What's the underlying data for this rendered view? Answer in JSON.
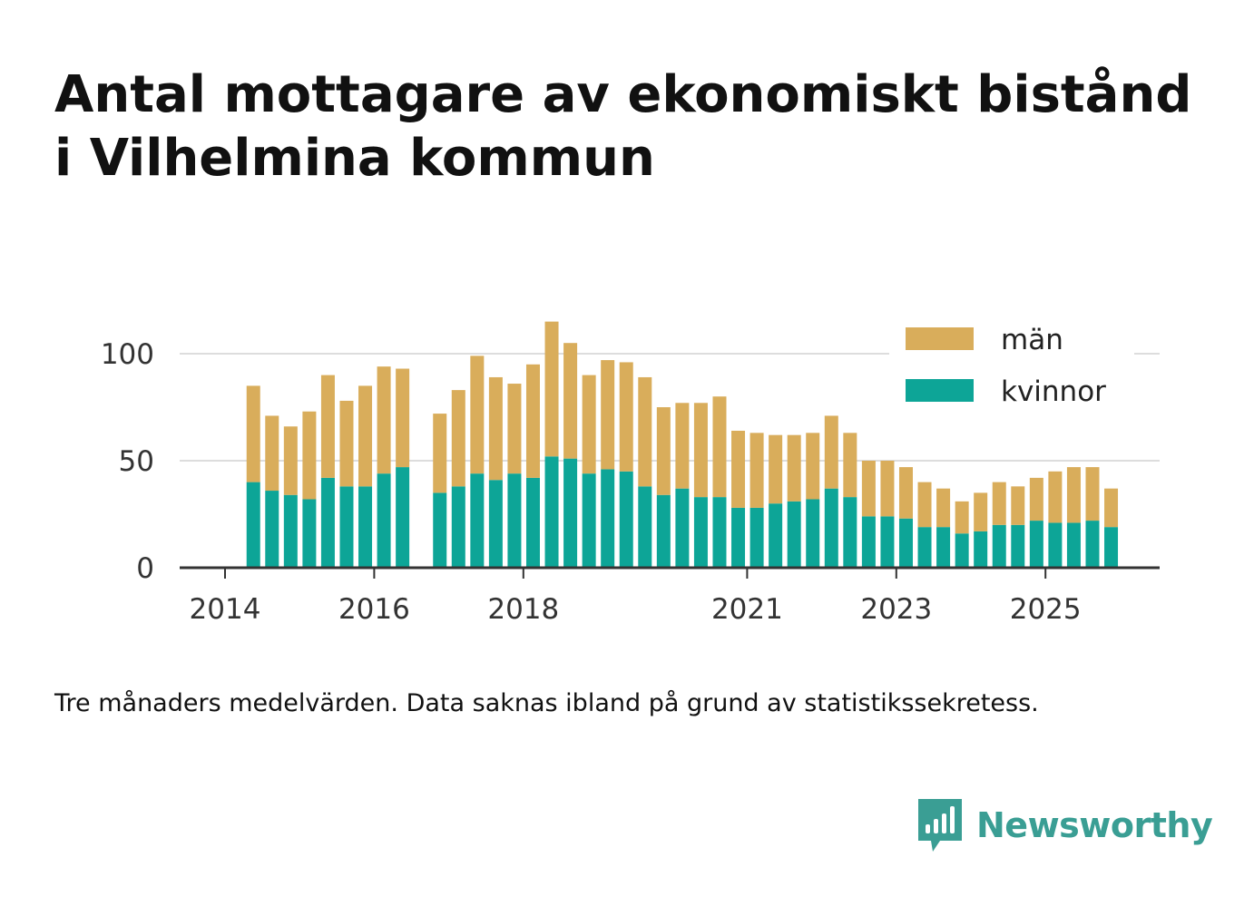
{
  "title": {
    "line1": "Antal mottagare av ekonomiskt bistånd",
    "line2": "i Vilhelmina kommun"
  },
  "note": "Tre månaders medelvärden. Data saknas ibland på grund av statistikssekretess.",
  "brand": {
    "name": "Newsworthy",
    "color": "#3a9e94"
  },
  "colors": {
    "man": "#d9ad5b",
    "kvinnor": "#0da597",
    "grid": "#dddddd",
    "axis": "#333333"
  },
  "chart_data": {
    "type": "bar",
    "stacked": true,
    "title": "Antal mottagare av ekonomiskt bistånd i Vilhelmina kommun",
    "xlabel": "",
    "ylabel": "",
    "ylim": [
      0,
      120
    ],
    "yticks": [
      0,
      50,
      100
    ],
    "xlim": [
      2014.0,
      2027.0
    ],
    "xticks": [
      2014,
      2016,
      2018,
      2021,
      2023,
      2025
    ],
    "legend": {
      "placement": "top-right",
      "entries": [
        "män",
        "kvinnor"
      ]
    },
    "x": [
      2014.38,
      2014.63,
      2014.88,
      2015.13,
      2015.38,
      2015.63,
      2015.88,
      2016.13,
      2016.38,
      2016.88,
      2017.13,
      2017.38,
      2017.63,
      2017.88,
      2018.13,
      2018.38,
      2018.63,
      2018.88,
      2019.13,
      2019.38,
      2019.63,
      2019.88,
      2020.13,
      2020.38,
      2020.63,
      2020.88,
      2021.13,
      2021.38,
      2021.63,
      2021.88,
      2022.13,
      2022.38,
      2022.63,
      2022.88,
      2023.13,
      2023.38,
      2023.63,
      2023.88,
      2024.13,
      2024.38,
      2024.63,
      2024.88,
      2025.13,
      2025.38,
      2025.63,
      2025.88
    ],
    "series": [
      {
        "name": "kvinnor",
        "values": [
          40,
          36,
          34,
          32,
          42,
          38,
          38,
          44,
          47,
          35,
          38,
          44,
          41,
          44,
          42,
          52,
          51,
          44,
          46,
          45,
          38,
          34,
          37,
          33,
          33,
          28,
          28,
          30,
          31,
          32,
          37,
          33,
          24,
          24,
          23,
          19,
          19,
          16,
          17,
          20,
          20,
          22,
          21,
          21,
          22,
          19
        ]
      },
      {
        "name": "män",
        "values": [
          45,
          35,
          32,
          41,
          48,
          40,
          47,
          50,
          46,
          37,
          45,
          55,
          48,
          42,
          53,
          63,
          54,
          46,
          51,
          51,
          51,
          41,
          40,
          44,
          47,
          36,
          35,
          32,
          31,
          31,
          34,
          30,
          26,
          26,
          24,
          21,
          18,
          15,
          18,
          20,
          18,
          20,
          24,
          26,
          25,
          18
        ]
      }
    ]
  }
}
